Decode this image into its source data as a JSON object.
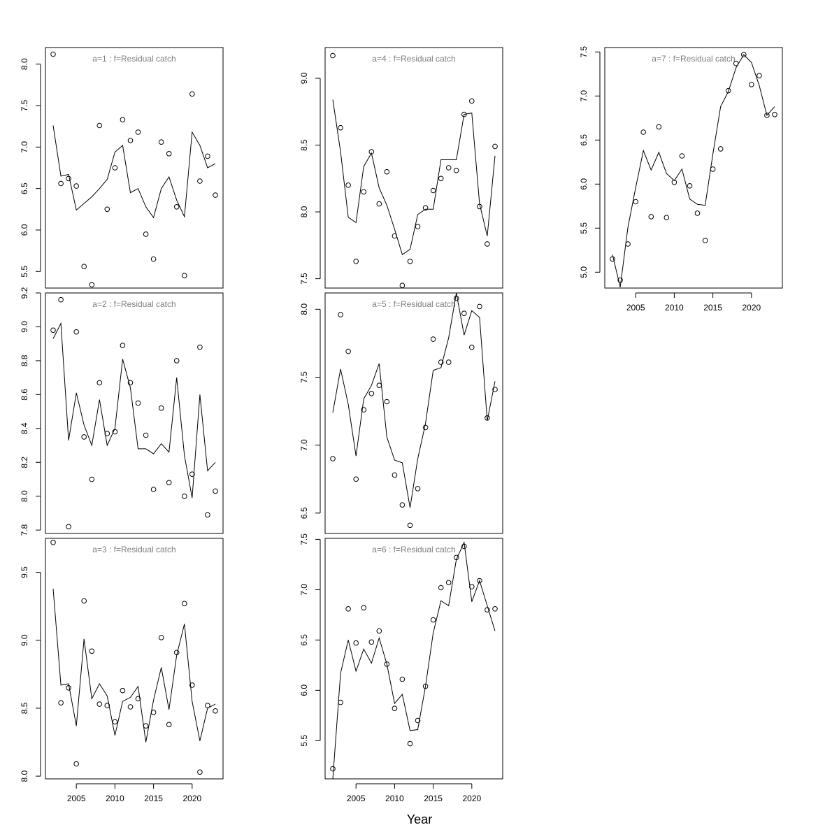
{
  "figure": {
    "xlabel": "Year"
  },
  "chart_data": [
    {
      "type": "scatter",
      "title": "a=1  :  f=Residual catch",
      "xlabel": "",
      "ylabel": "",
      "xlim": [
        2001,
        2024
      ],
      "ylim": [
        5.3,
        8.2
      ],
      "xticks": [
        2005,
        2010,
        2015,
        2020
      ],
      "show_xticks": false,
      "yticks": [
        5.5,
        6.0,
        6.5,
        7.0,
        7.5,
        8.0
      ],
      "yticklabels": [
        "5.5",
        "6.0",
        "6.5",
        "7.0",
        "7.5",
        "8.0"
      ],
      "x": [
        2002,
        2003,
        2004,
        2005,
        2006,
        2007,
        2008,
        2009,
        2010,
        2011,
        2012,
        2013,
        2014,
        2015,
        2016,
        2017,
        2018,
        2019,
        2020,
        2021,
        2022,
        2023
      ],
      "series": [
        {
          "kind": "points",
          "values": [
            8.12,
            6.56,
            6.62,
            6.53,
            5.56,
            5.34,
            7.26,
            6.25,
            6.75,
            7.33,
            7.08,
            7.18,
            5.95,
            5.65,
            7.06,
            6.92,
            6.28,
            5.45,
            7.64,
            6.59,
            6.89,
            6.42
          ]
        },
        {
          "kind": "line",
          "values": [
            7.26,
            6.65,
            6.67,
            6.24,
            6.32,
            6.4,
            6.5,
            6.61,
            6.94,
            7.02,
            6.45,
            6.5,
            6.28,
            6.15,
            6.5,
            6.64,
            6.36,
            6.16,
            7.18,
            7.02,
            6.75,
            6.8
          ]
        }
      ]
    },
    {
      "type": "scatter",
      "title": "a=2  :  f=Residual catch",
      "xlabel": "",
      "ylabel": "",
      "xlim": [
        2001,
        2024
      ],
      "ylim": [
        7.78,
        9.2
      ],
      "xticks": [
        2005,
        2010,
        2015,
        2020
      ],
      "show_xticks": false,
      "yticks": [
        7.8,
        8.0,
        8.2,
        8.4,
        8.6,
        8.8,
        9.0,
        9.2
      ],
      "yticklabels": [
        "7.8",
        "8.0",
        "8.2",
        "8.4",
        "8.6",
        "8.8",
        "9.0",
        "9.2"
      ],
      "x": [
        2002,
        2003,
        2004,
        2005,
        2006,
        2007,
        2008,
        2009,
        2010,
        2011,
        2012,
        2013,
        2014,
        2015,
        2016,
        2017,
        2018,
        2019,
        2020,
        2021,
        2022,
        2023
      ],
      "series": [
        {
          "kind": "points",
          "values": [
            8.98,
            9.16,
            7.82,
            8.97,
            8.35,
            8.1,
            8.67,
            8.37,
            8.38,
            8.89,
            8.67,
            8.55,
            8.36,
            8.04,
            8.52,
            8.08,
            8.8,
            8.0,
            8.13,
            8.88,
            7.89,
            8.03
          ]
        },
        {
          "kind": "line",
          "values": [
            8.93,
            9.02,
            8.33,
            8.61,
            8.42,
            8.3,
            8.57,
            8.3,
            8.4,
            8.81,
            8.64,
            8.28,
            8.28,
            8.25,
            8.31,
            8.26,
            8.7,
            8.24,
            7.99,
            8.6,
            8.15,
            8.2
          ]
        }
      ]
    },
    {
      "type": "scatter",
      "title": "a=3  :  f=Residual catch",
      "xlabel": "",
      "ylabel": "",
      "xlim": [
        2001,
        2024
      ],
      "ylim": [
        7.98,
        9.75
      ],
      "xticks": [
        2005,
        2010,
        2015,
        2020
      ],
      "show_xticks": true,
      "yticks": [
        8.0,
        8.5,
        9.0,
        9.5
      ],
      "yticklabels": [
        "8.0",
        "8.5",
        "9.0",
        "9.5"
      ],
      "x": [
        2002,
        2003,
        2004,
        2005,
        2006,
        2007,
        2008,
        2009,
        2010,
        2011,
        2012,
        2013,
        2014,
        2015,
        2016,
        2017,
        2018,
        2019,
        2020,
        2021,
        2022,
        2023
      ],
      "series": [
        {
          "kind": "points",
          "values": [
            9.72,
            8.54,
            8.65,
            8.09,
            9.29,
            8.92,
            8.53,
            8.52,
            8.4,
            8.63,
            8.51,
            8.57,
            8.37,
            8.47,
            9.02,
            8.38,
            8.91,
            9.27,
            8.67,
            8.03,
            8.52,
            8.48
          ]
        },
        {
          "kind": "line",
          "values": [
            9.38,
            8.67,
            8.68,
            8.37,
            9.01,
            8.57,
            8.68,
            8.59,
            8.3,
            8.55,
            8.58,
            8.66,
            8.25,
            8.56,
            8.8,
            8.49,
            8.89,
            9.12,
            8.55,
            8.26,
            8.5,
            8.53
          ]
        }
      ]
    },
    {
      "type": "scatter",
      "title": "a=4  :  f=Residual catch",
      "xlabel": "",
      "ylabel": "",
      "xlim": [
        2001,
        2024
      ],
      "ylim": [
        7.43,
        9.23
      ],
      "xticks": [
        2005,
        2010,
        2015,
        2020
      ],
      "show_xticks": false,
      "yticks": [
        7.5,
        8.0,
        8.5,
        9.0
      ],
      "yticklabels": [
        "7.5",
        "8.0",
        "8.5",
        "9.0"
      ],
      "x": [
        2002,
        2003,
        2004,
        2005,
        2006,
        2007,
        2008,
        2009,
        2010,
        2011,
        2012,
        2013,
        2014,
        2015,
        2016,
        2017,
        2018,
        2019,
        2020,
        2021,
        2022,
        2023
      ],
      "series": [
        {
          "kind": "points",
          "values": [
            9.17,
            8.63,
            8.2,
            7.63,
            8.15,
            8.45,
            8.06,
            8.3,
            7.82,
            7.45,
            7.63,
            7.89,
            8.03,
            8.16,
            8.25,
            8.33,
            8.31,
            8.73,
            8.83,
            8.04,
            7.76,
            8.49
          ]
        },
        {
          "kind": "line",
          "values": [
            8.84,
            8.45,
            7.96,
            7.92,
            8.34,
            8.44,
            8.18,
            8.05,
            7.87,
            7.68,
            7.72,
            7.98,
            8.02,
            8.02,
            8.39,
            8.39,
            8.39,
            8.73,
            8.74,
            8.06,
            7.82,
            8.42
          ]
        }
      ]
    },
    {
      "type": "scatter",
      "title": "a=5  :  f=Residual catch",
      "xlabel": "",
      "ylabel": "",
      "xlim": [
        2001,
        2024
      ],
      "ylim": [
        6.35,
        8.12
      ],
      "xticks": [
        2005,
        2010,
        2015,
        2020
      ],
      "show_xticks": false,
      "yticks": [
        6.5,
        7.0,
        7.5,
        8.0
      ],
      "yticklabels": [
        "6.5",
        "7.0",
        "7.5",
        "8.0"
      ],
      "x": [
        2002,
        2003,
        2004,
        2005,
        2006,
        2007,
        2008,
        2009,
        2010,
        2011,
        2012,
        2013,
        2014,
        2015,
        2016,
        2017,
        2018,
        2019,
        2020,
        2021,
        2022,
        2023
      ],
      "series": [
        {
          "kind": "points",
          "values": [
            6.9,
            7.96,
            7.69,
            6.75,
            7.26,
            7.38,
            7.44,
            7.32,
            6.78,
            6.56,
            6.41,
            6.68,
            7.13,
            7.78,
            7.61,
            7.61,
            8.08,
            7.97,
            7.72,
            8.02,
            7.2,
            7.41
          ]
        },
        {
          "kind": "line",
          "values": [
            7.24,
            7.56,
            7.3,
            6.92,
            7.34,
            7.44,
            7.6,
            7.06,
            6.89,
            6.87,
            6.54,
            6.9,
            7.16,
            7.55,
            7.57,
            7.79,
            8.12,
            7.81,
            7.99,
            7.94,
            7.18,
            7.47
          ]
        }
      ]
    },
    {
      "type": "scatter",
      "title": "a=6  :  f=Residual catch",
      "xlabel": "",
      "ylabel": "",
      "xlim": [
        2001,
        2024
      ],
      "ylim": [
        5.12,
        7.51
      ],
      "xticks": [
        2005,
        2010,
        2015,
        2020
      ],
      "show_xticks": true,
      "yticks": [
        5.5,
        6.0,
        6.5,
        7.0,
        7.5
      ],
      "yticklabels": [
        "5.5",
        "6.0",
        "6.5",
        "7.0",
        "7.5"
      ],
      "x": [
        2002,
        2003,
        2004,
        2005,
        2006,
        2007,
        2008,
        2009,
        2010,
        2011,
        2012,
        2013,
        2014,
        2015,
        2016,
        2017,
        2018,
        2019,
        2020,
        2021,
        2022,
        2023
      ],
      "series": [
        {
          "kind": "points",
          "values": [
            5.22,
            5.88,
            6.81,
            6.47,
            6.82,
            6.48,
            6.59,
            6.26,
            5.82,
            6.11,
            5.47,
            5.7,
            6.04,
            6.7,
            7.02,
            7.07,
            7.32,
            7.43,
            7.03,
            7.09,
            6.8,
            6.81
          ]
        },
        {
          "kind": "line",
          "values": [
            5.12,
            6.17,
            6.5,
            6.19,
            6.41,
            6.27,
            6.52,
            6.26,
            5.87,
            5.96,
            5.6,
            5.61,
            6.04,
            6.57,
            6.89,
            6.84,
            7.3,
            7.47,
            6.88,
            7.09,
            6.84,
            6.59
          ]
        }
      ]
    },
    {
      "type": "scatter",
      "title": "a=7  :  f=Residual catch",
      "xlabel": "",
      "ylabel": "",
      "xlim": [
        2001,
        2024
      ],
      "ylim": [
        4.82,
        7.55
      ],
      "xticks": [
        2005,
        2010,
        2015,
        2020
      ],
      "show_xticks": true,
      "yticks": [
        5.0,
        5.5,
        6.0,
        6.5,
        7.0,
        7.5
      ],
      "yticklabels": [
        "5.0",
        "5.5",
        "6.0",
        "6.5",
        "7.0",
        "7.5"
      ],
      "x": [
        2002,
        2003,
        2004,
        2005,
        2006,
        2007,
        2008,
        2009,
        2010,
        2011,
        2012,
        2013,
        2014,
        2015,
        2016,
        2017,
        2018,
        2019,
        2020,
        2021,
        2022,
        2023
      ],
      "series": [
        {
          "kind": "points",
          "values": [
            5.15,
            4.91,
            5.32,
            5.8,
            6.59,
            5.63,
            6.65,
            5.62,
            6.02,
            6.32,
            5.98,
            5.67,
            5.36,
            6.17,
            6.4,
            7.06,
            7.37,
            7.47,
            7.13,
            7.23,
            6.78,
            6.79
          ]
        },
        {
          "kind": "line",
          "values": [
            5.2,
            4.83,
            5.51,
            5.96,
            6.38,
            6.16,
            6.36,
            6.12,
            6.04,
            6.17,
            5.83,
            5.77,
            5.76,
            6.34,
            6.88,
            7.05,
            7.32,
            7.47,
            7.38,
            7.12,
            6.78,
            6.88
          ]
        }
      ]
    }
  ]
}
